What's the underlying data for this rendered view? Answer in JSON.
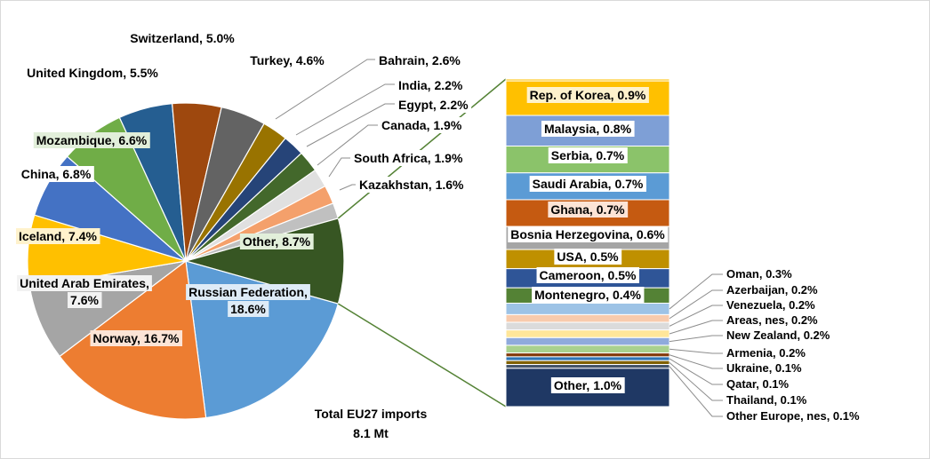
{
  "chart_data": {
    "type": "pie",
    "footer": {
      "line1": "Total EU27 imports",
      "line2": "8.1 Mt"
    },
    "slices": [
      {
        "name": "Russian Federation,",
        "name2": "18.6%",
        "value": 18.6,
        "color": "#5b9bd5"
      },
      {
        "name": "Norway, 16.7%",
        "value": 16.7,
        "color": "#ed7d31"
      },
      {
        "name": "United Arab Emirates,",
        "name2": "7.6%",
        "value": 7.6,
        "color": "#a5a5a5"
      },
      {
        "name": "Iceland, 7.4%",
        "value": 7.4,
        "color": "#ffc000"
      },
      {
        "name": "China, 6.8%",
        "value": 6.8,
        "color": "#4472c4"
      },
      {
        "name": "Mozambique, 6.6%",
        "value": 6.6,
        "color": "#70ad47"
      },
      {
        "name": "United Kingdom, 5.5%",
        "value": 5.5,
        "color": "#255e91"
      },
      {
        "name": "Switzerland, 5.0%",
        "value": 5.0,
        "color": "#9e480e"
      },
      {
        "name": "Turkey, 4.6%",
        "value": 4.6,
        "color": "#636363"
      },
      {
        "name": "Bahrain, 2.6%",
        "value": 2.6,
        "color": "#997300"
      },
      {
        "name": "India, 2.2%",
        "value": 2.2,
        "color": "#264478"
      },
      {
        "name": "Egypt, 2.2%",
        "value": 2.2,
        "color": "#43682b"
      },
      {
        "name": "Canada, 1.9%",
        "value": 1.9,
        "color": "#e0e0e0"
      },
      {
        "name": "South Africa, 1.9%",
        "value": 1.9,
        "color": "#f4a06b"
      },
      {
        "name": "Kazakhstan, 1.6%",
        "value": 1.6,
        "color": "#c0c0c0"
      },
      {
        "name": "Other, 8.7%",
        "value": 8.7,
        "color": "#375623"
      }
    ],
    "other_breakdown": [
      {
        "name": "",
        "value": 0.05,
        "color": "#ffc000"
      },
      {
        "name": "Rep. of Korea, 0.9%",
        "value": 0.9,
        "color": "#ffc000"
      },
      {
        "name": "Malaysia, 0.8%",
        "value": 0.8,
        "color": "#7e9fd6"
      },
      {
        "name": "Serbia, 0.7%",
        "value": 0.7,
        "color": "#8bc36a"
      },
      {
        "name": "Saudi Arabia, 0.7%",
        "value": 0.7,
        "color": "#5b9bd5"
      },
      {
        "name": "Ghana, 0.7%",
        "value": 0.7,
        "color": "#c55a11"
      },
      {
        "name": "Bosnia Herzegovina, 0.6%",
        "value": 0.6,
        "color": "#a5a5a5"
      },
      {
        "name": "USA, 0.5%",
        "value": 0.5,
        "color": "#bf9000"
      },
      {
        "name": "Cameroon, 0.5%",
        "value": 0.5,
        "color": "#2f5597"
      },
      {
        "name": "Montenegro, 0.4%",
        "value": 0.4,
        "color": "#548235"
      },
      {
        "name": "Oman, 0.3%",
        "value": 0.3,
        "color": "#9dc3e6"
      },
      {
        "name": "Azerbaijan, 0.2%",
        "value": 0.2,
        "color": "#f8cbad"
      },
      {
        "name": "Venezuela, 0.2%",
        "value": 0.2,
        "color": "#dbdbdb"
      },
      {
        "name": "Areas, nes, 0.2%",
        "value": 0.2,
        "color": "#ffe699"
      },
      {
        "name": "New Zealand, 0.2%",
        "value": 0.2,
        "color": "#8faadc"
      },
      {
        "name": "Armenia, 0.2%",
        "value": 0.2,
        "color": "#a9d18e"
      },
      {
        "name": "Ukraine, 0.1%",
        "value": 0.1,
        "color": "#843c0c"
      },
      {
        "name": "Qatar, 0.1%",
        "value": 0.1,
        "color": "#2e75b6"
      },
      {
        "name": "Thailand, 0.1%",
        "value": 0.1,
        "color": "#7f6000"
      },
      {
        "name": "Other Europe, nes, 0.1%",
        "value": 0.1,
        "color": "#44546a"
      },
      {
        "name": "Other, 1.0%",
        "value": 1.0,
        "color": "#1f3864"
      }
    ]
  }
}
